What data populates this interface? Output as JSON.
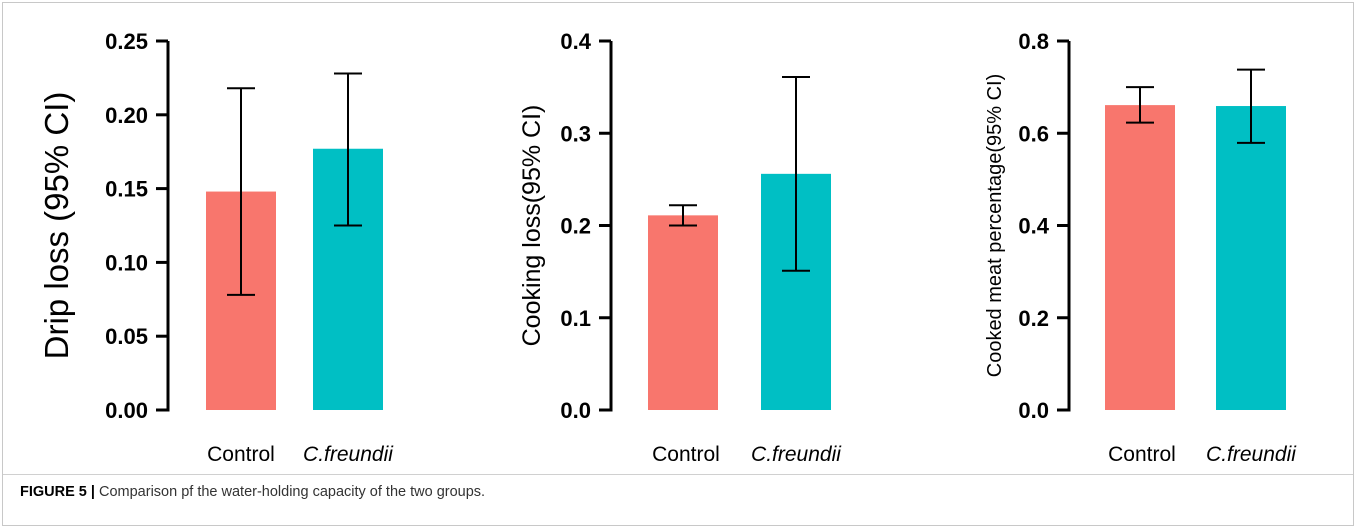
{
  "figure": {
    "caption_label": "FIGURE 5 |",
    "caption_text": " Comparison pf the water-holding capacity of the two groups."
  },
  "colors": {
    "control": "#F8766D",
    "c_freundii": "#00BFC4"
  },
  "chart_data": [
    {
      "type": "bar",
      "categories": [
        "Control",
        "C.freundii"
      ],
      "values": [
        0.148,
        0.177
      ],
      "error_low": [
        0.078,
        0.125
      ],
      "error_high": [
        0.218,
        0.228
      ],
      "ylabel": "Drip loss (95% CI)",
      "ylim": [
        0,
        0.25
      ],
      "yticks": [
        "0.00",
        "0.05",
        "0.10",
        "0.15",
        "0.20",
        "0.25"
      ],
      "grid": false
    },
    {
      "type": "bar",
      "categories": [
        "Control",
        "C.freundii"
      ],
      "values": [
        0.211,
        0.256
      ],
      "error_low": [
        0.2,
        0.151
      ],
      "error_high": [
        0.222,
        0.361
      ],
      "ylabel": "Cooking loss(95% CI)",
      "ylim": [
        0,
        0.4
      ],
      "yticks": [
        "0.0",
        "0.1",
        "0.2",
        "0.3",
        "0.4"
      ],
      "grid": false
    },
    {
      "type": "bar",
      "categories": [
        "Control",
        "C.freundii"
      ],
      "values": [
        0.661,
        0.659
      ],
      "error_low": [
        0.623,
        0.579
      ],
      "error_high": [
        0.7,
        0.738
      ],
      "ylabel": "Cooked meat percentage(95% CI)",
      "ylim": [
        0,
        0.8
      ],
      "yticks": [
        "0.0",
        "0.2",
        "0.4",
        "0.6",
        "0.8"
      ],
      "grid": false
    }
  ]
}
